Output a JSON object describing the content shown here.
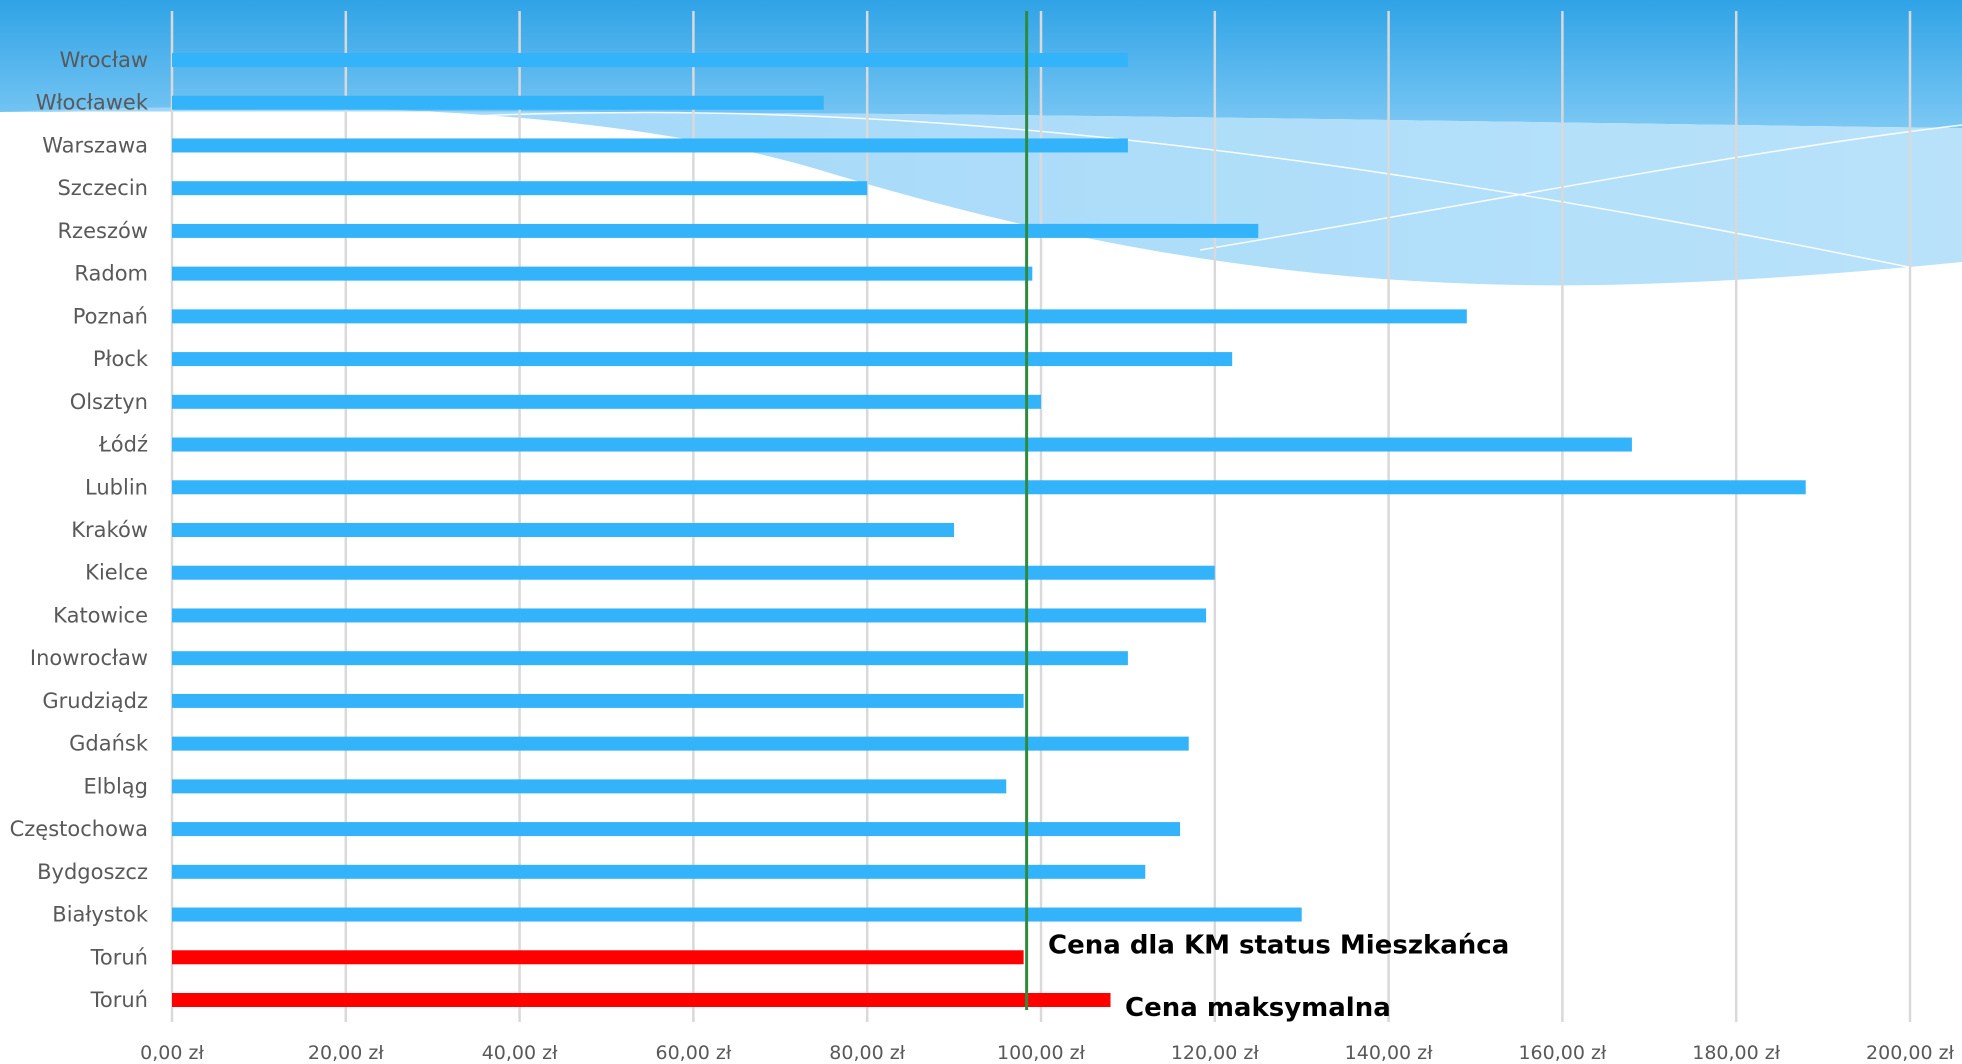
{
  "chart_data": {
    "type": "bar",
    "orientation": "horizontal",
    "categories": [
      "Wrocław",
      "Włocławek",
      "Warszawa",
      "Szczecin",
      "Rzeszów",
      "Radom",
      "Poznań",
      "Płock",
      "Olsztyn",
      "Łódź",
      "Lublin",
      "Kraków",
      "Kielce",
      "Katowice",
      "Inowrocław",
      "Grudziądz",
      "Gdańsk",
      "Elbląg",
      "Częstochowa",
      "Bydgoszcz",
      "Białystok",
      "Toruń",
      "Toruń"
    ],
    "values": [
      110,
      75,
      110,
      80,
      125,
      99,
      149,
      122,
      100,
      168,
      188,
      90,
      120,
      119,
      110,
      98,
      117,
      96,
      116,
      112,
      130,
      98,
      108
    ],
    "highlight_indices": [
      21,
      22
    ],
    "xlim": [
      0,
      200
    ],
    "xticks": [
      0,
      20,
      40,
      60,
      80,
      100,
      120,
      140,
      160,
      180,
      200
    ],
    "xtick_labels": [
      "0,00 zł",
      "20,00 zł",
      "40,00 zł",
      "60,00 zł",
      "80,00 zł",
      "100,00 zł",
      "120,00 zł",
      "140,00 zł",
      "160,00 zł",
      "180,00 zł",
      "200,00 zł"
    ],
    "reference_line": {
      "value": 98
    },
    "annotations": [
      {
        "text": "Cena dla KM status Mieszkańca",
        "category_index": 21
      },
      {
        "text": "Cena maksymalna",
        "category_index": 22
      }
    ],
    "grid": "vertical",
    "title": "",
    "xlabel": "",
    "ylabel": ""
  },
  "colors": {
    "bar": "#33B4FA",
    "highlight": "#FF0000",
    "reference_line": "#2E8B3E",
    "grid": "#D9D9D9",
    "label": "#595959",
    "background_top": "#3BA8E8"
  }
}
